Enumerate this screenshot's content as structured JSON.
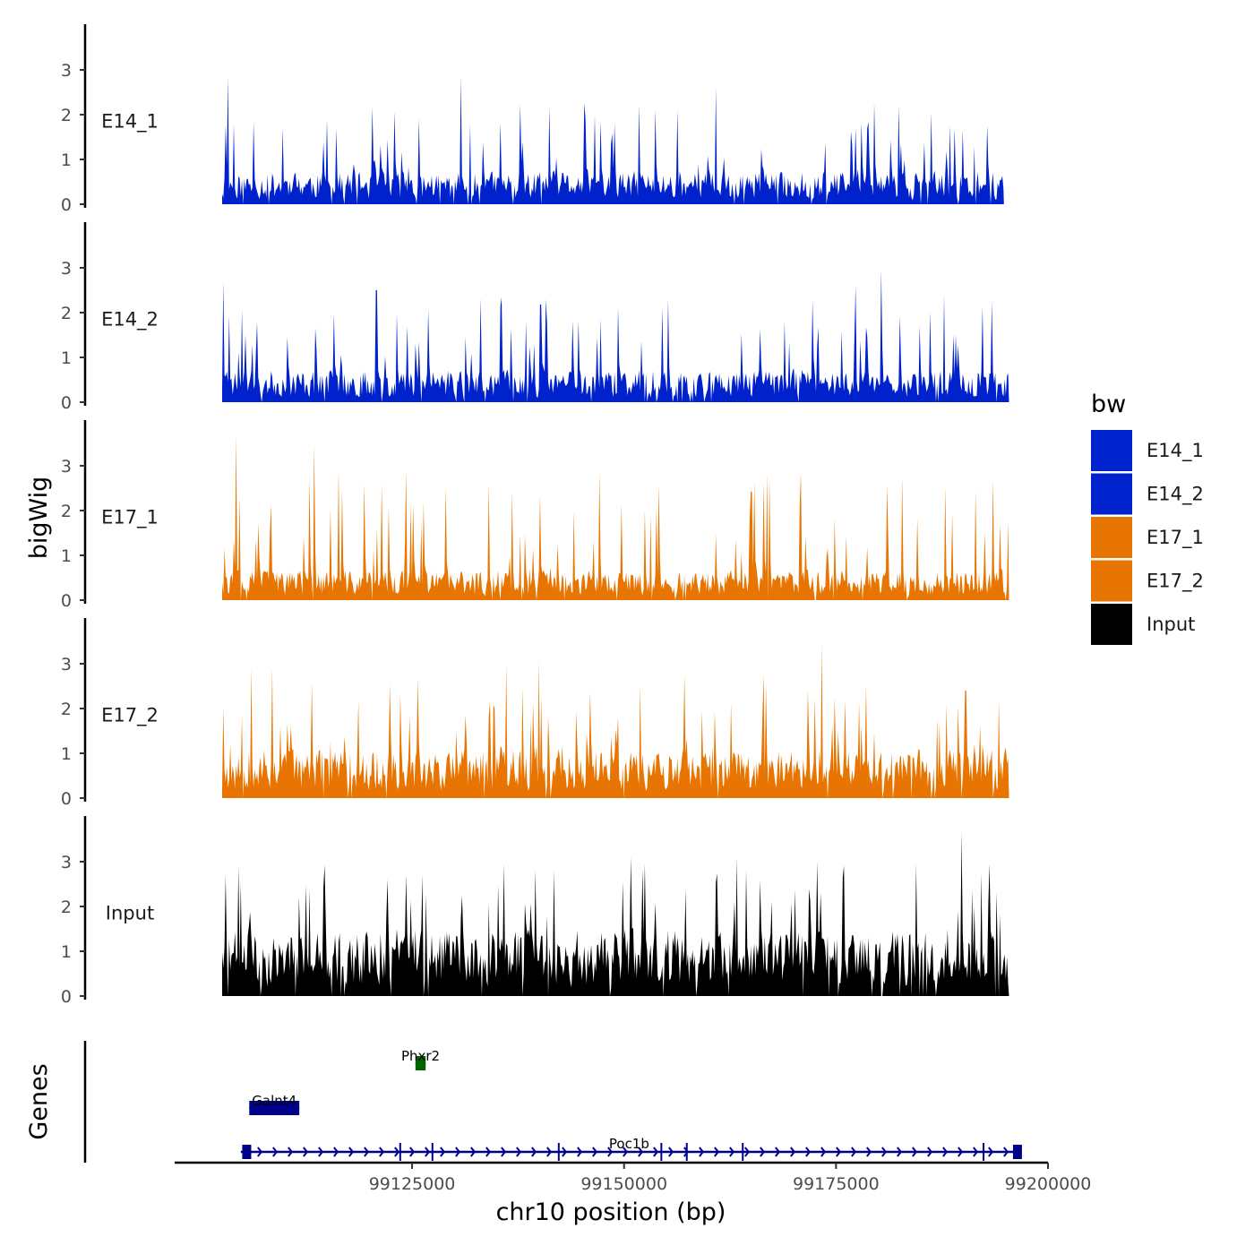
{
  "chart_data": {
    "type": "area",
    "y_axis_title": "bigWig",
    "genes_axis_title": "Genes",
    "x_axis_title": "chr10 position (bp)",
    "x_range": [
      99097000,
      99200000
    ],
    "y_range": [
      0,
      3.9
    ],
    "y_ticks": [
      0,
      1,
      2,
      3
    ],
    "x_ticks": [
      {
        "value": 99125000,
        "label": "99125000"
      },
      {
        "value": 99150000,
        "label": "99150000"
      },
      {
        "value": 99175000,
        "label": "99175000"
      },
      {
        "value": 99200000,
        "label": "99200000"
      }
    ],
    "tracks": [
      {
        "name": "E14_1",
        "color": "#0022cc",
        "start": 99102600,
        "end": 99194800,
        "max": 2.85,
        "mean": 0.5,
        "seed": 11,
        "peaks": [
          {
            "x": 99103300,
            "y": 2.85
          },
          {
            "x": 99125800,
            "y": 1.9
          },
          {
            "x": 99130700,
            "y": 2.85
          },
          {
            "x": 99156300,
            "y": 2.1
          },
          {
            "x": 99160800,
            "y": 2.6
          },
          {
            "x": 99177300,
            "y": 1.7
          }
        ]
      },
      {
        "name": "E14_2",
        "color": "#0022cc",
        "start": 99102600,
        "end": 99195400,
        "max": 2.95,
        "mean": 0.5,
        "seed": 23,
        "peaks": [
          {
            "x": 99102700,
            "y": 2.7
          },
          {
            "x": 99120800,
            "y": 2.5
          },
          {
            "x": 99140800,
            "y": 2.3
          },
          {
            "x": 99177300,
            "y": 2.6
          },
          {
            "x": 99180300,
            "y": 2.95
          },
          {
            "x": 99187700,
            "y": 2.4
          }
        ]
      },
      {
        "name": "E17_1",
        "color": "#e87501",
        "start": 99102600,
        "end": 99195400,
        "max": 3.7,
        "mean": 0.45,
        "seed": 37,
        "peaks": [
          {
            "x": 99104300,
            "y": 3.7
          },
          {
            "x": 99113400,
            "y": 3.5
          },
          {
            "x": 99116300,
            "y": 2.9
          },
          {
            "x": 99124300,
            "y": 2.9
          },
          {
            "x": 99182800,
            "y": 2.75
          }
        ]
      },
      {
        "name": "E17_2",
        "color": "#e87501",
        "start": 99102600,
        "end": 99195400,
        "max": 3.45,
        "mean": 0.75,
        "seed": 53,
        "peaks": [
          {
            "x": 99106000,
            "y": 2.9
          },
          {
            "x": 99108500,
            "y": 2.9
          },
          {
            "x": 99136100,
            "y": 3.0
          },
          {
            "x": 99139900,
            "y": 3.05
          },
          {
            "x": 99173300,
            "y": 3.45
          },
          {
            "x": 99190300,
            "y": 2.4
          }
        ]
      },
      {
        "name": "Input",
        "color": "#000000",
        "start": 99102600,
        "end": 99195400,
        "max": 3.65,
        "mean": 1.0,
        "seed": 71,
        "peaks": [
          {
            "x": 99103000,
            "y": 2.7
          },
          {
            "x": 99150800,
            "y": 3.1
          },
          {
            "x": 99163300,
            "y": 3.1
          },
          {
            "x": 99172800,
            "y": 3.0
          },
          {
            "x": 99189800,
            "y": 3.65
          }
        ]
      }
    ],
    "genes": [
      {
        "name": "Phxr2",
        "start": 99125400,
        "end": 99126600,
        "row": 3,
        "color": "#006400",
        "strand": "-"
      },
      {
        "name": "Galnt4",
        "start": 99105800,
        "end": 99111700,
        "row": 2,
        "color": "#00008b",
        "strand": "-"
      },
      {
        "name": "Poc1b",
        "start": 99104800,
        "end": 99196400,
        "row": 1,
        "color": "#00008b",
        "strand": "+",
        "exons": [
          99105500,
          99123600,
          99127400,
          99142300,
          99154400,
          99157400,
          99164000,
          99192400,
          99196400
        ]
      }
    ],
    "legend": {
      "title": "bw",
      "position": "right",
      "items": [
        {
          "label": "E14_1",
          "color": "#0022cc"
        },
        {
          "label": "E14_2",
          "color": "#0022cc"
        },
        {
          "label": "E17_1",
          "color": "#e87501"
        },
        {
          "label": "E17_2",
          "color": "#e87501"
        },
        {
          "label": "Input",
          "color": "#000000"
        }
      ]
    }
  }
}
